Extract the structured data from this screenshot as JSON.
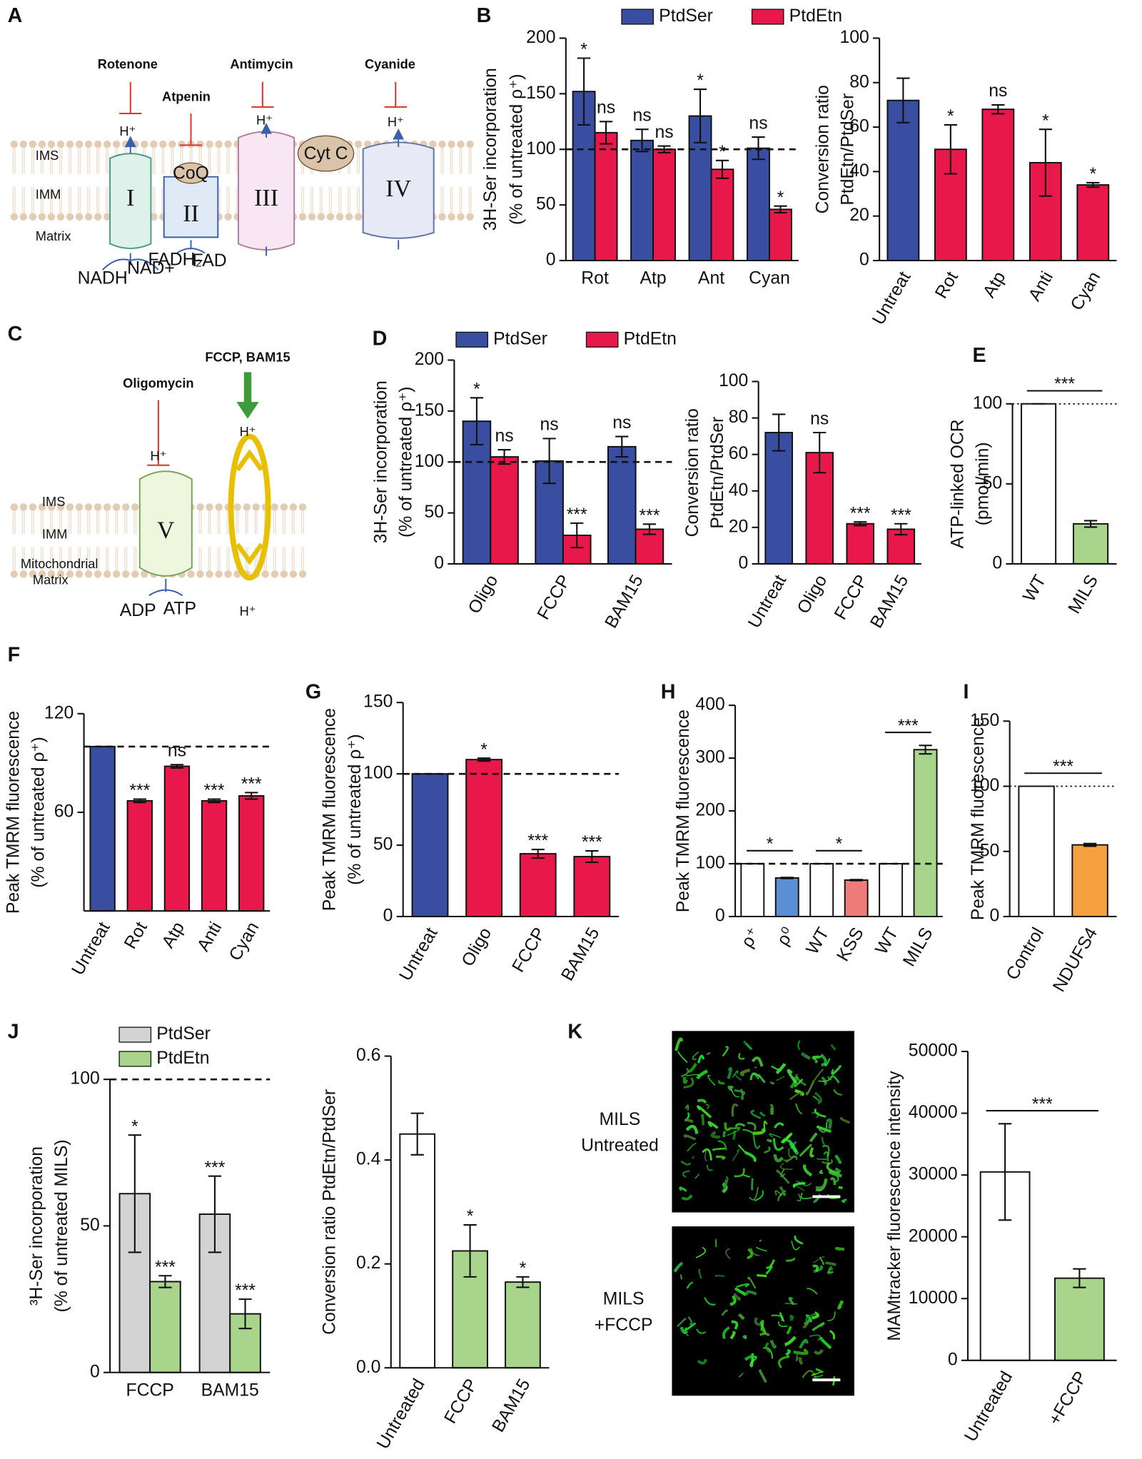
{
  "diagram_a": {
    "panel": "A",
    "inhibitors": [
      "Rotenone",
      "Atpenin",
      "Antimycin",
      "Cyanide"
    ],
    "protons": [
      "H⁺",
      "H⁺",
      "H⁺"
    ],
    "regions": [
      "IMS",
      "IMM",
      "Matrix"
    ],
    "complexes": [
      "I",
      "II",
      "III",
      "IV"
    ],
    "carriers": [
      "CoQ",
      "Cyt C"
    ],
    "substrates": [
      "NADH",
      "NAD+",
      "FADH₂",
      "FAD"
    ]
  },
  "diagram_c": {
    "panel": "C",
    "inhibitors": [
      "Oligomycin",
      "FCCP, BAM15"
    ],
    "protons": [
      "H⁺",
      "H⁺",
      "H⁺"
    ],
    "regions": [
      "IMS",
      "IMM",
      "Mitochondrial",
      "Matrix"
    ],
    "complex": "V",
    "substrates": [
      "ADP",
      "ATP"
    ]
  },
  "images": {
    "panel": "K",
    "labels": [
      [
        "MILS",
        "Untreated"
      ],
      [
        "MILS",
        "+FCCP"
      ]
    ]
  },
  "chart_data": [
    {
      "type": "bar",
      "panel": "B",
      "ylabel": [
        "3H-Ser incorporation",
        "(% of untreated ρ⁺)"
      ],
      "categories": [
        "Rot",
        "Atp",
        "Ant",
        "Cyan"
      ],
      "ylim": [
        0,
        200
      ],
      "yticks": [
        0,
        50,
        100,
        150,
        200
      ],
      "ref_line": 100,
      "ref_style": "dashed",
      "series": [
        {
          "name": "PtdSer",
          "color": "#3a4ea1",
          "values": [
            152,
            108,
            130,
            101
          ],
          "errors": [
            30,
            10,
            24,
            10
          ],
          "annotations": [
            "*",
            "ns",
            "*",
            "ns"
          ]
        },
        {
          "name": "PtdEtn",
          "color": "#e8194a",
          "values": [
            115,
            100,
            82,
            46
          ],
          "errors": [
            10,
            3,
            8,
            3
          ],
          "annotations": [
            "ns",
            "ns",
            "*",
            "*"
          ]
        }
      ]
    },
    {
      "type": "bar",
      "ylabel": [
        "Conversion ratio",
        "PtdEtn/PtdSer"
      ],
      "categories": [
        "Untreat",
        "Rot",
        "Atp",
        "Anti",
        "Cyan"
      ],
      "ylim": [
        0,
        100
      ],
      "yticks": [
        0,
        20,
        40,
        60,
        80,
        100
      ],
      "values": [
        72,
        50,
        68,
        44,
        34
      ],
      "errors": [
        10,
        11,
        2,
        15,
        1
      ],
      "colors": [
        "#3a4ea1",
        "#e8194a",
        "#e8194a",
        "#e8194a",
        "#e8194a"
      ],
      "annotations": [
        null,
        "*",
        "ns",
        "*",
        "*"
      ]
    },
    {
      "type": "bar",
      "panel": "D",
      "ylabel": [
        "3H-Ser incorporation",
        "(% of untreated ρ⁺)"
      ],
      "categories": [
        "Oligo",
        "FCCP",
        "BAM15"
      ],
      "ylim": [
        0,
        200
      ],
      "yticks": [
        0,
        50,
        100,
        150,
        200
      ],
      "ref_line": 100,
      "ref_style": "dashed",
      "series": [
        {
          "name": "PtdSer",
          "color": "#3a4ea1",
          "values": [
            140,
            101,
            115
          ],
          "errors": [
            23,
            22,
            10
          ],
          "annotations": [
            "*",
            "ns",
            "ns"
          ]
        },
        {
          "name": "PtdEtn",
          "color": "#e8194a",
          "values": [
            105,
            28,
            34
          ],
          "errors": [
            7,
            12,
            5
          ],
          "annotations": [
            "ns",
            "***",
            "***"
          ]
        }
      ]
    },
    {
      "type": "bar",
      "ylabel": [
        "Conversion ratio",
        "PtdEtn/PtdSer"
      ],
      "categories": [
        "Untreat",
        "Oligo",
        "FCCP",
        "BAM15"
      ],
      "ylim": [
        0,
        100
      ],
      "yticks": [
        0,
        20,
        40,
        60,
        80,
        100
      ],
      "values": [
        72,
        61,
        22,
        19
      ],
      "errors": [
        10,
        11,
        1,
        3
      ],
      "colors": [
        "#3a4ea1",
        "#e8194a",
        "#e8194a",
        "#e8194a"
      ],
      "annotations": [
        null,
        "ns",
        "***",
        "***"
      ]
    },
    {
      "type": "bar",
      "panel": "E",
      "ylabel": [
        "ATP-linked OCR",
        "(pmol/min)"
      ],
      "categories": [
        "WT",
        "MILS"
      ],
      "ylim": [
        0,
        100
      ],
      "yticks": [
        0,
        50,
        100
      ],
      "ref_line": 100,
      "ref_style": "dotted",
      "values": [
        100,
        25
      ],
      "errors": [
        0,
        2
      ],
      "colors": [
        "#ffffff",
        "#a8d58b"
      ],
      "annotations": [
        null,
        "***"
      ]
    },
    {
      "type": "bar",
      "panel": "F",
      "ylabel": [
        "Peak TMRM fluorescence",
        "(% of untreated ρ⁺)"
      ],
      "categories": [
        "Untreat",
        "Rot",
        "Atp",
        "Anti",
        "Cyan"
      ],
      "ylim": [
        0,
        120
      ],
      "yticks": [
        60,
        120
      ],
      "ref_line": 100,
      "ref_style": "dashed",
      "values": [
        100,
        67,
        88,
        67,
        70
      ],
      "errors": [
        0,
        1,
        1,
        1,
        2
      ],
      "colors": [
        "#3a4ea1",
        "#e8194a",
        "#e8194a",
        "#e8194a",
        "#e8194a"
      ],
      "annotations": [
        null,
        "***",
        "ns",
        "***",
        "***"
      ]
    },
    {
      "type": "bar",
      "panel": "G",
      "ylabel": [
        "Peak TMRM fluorescence",
        "(% of untreated ρ⁺)"
      ],
      "categories": [
        "Untreat",
        "Oligo",
        "FCCP",
        "BAM15"
      ],
      "ylim": [
        0,
        150
      ],
      "yticks": [
        0,
        50,
        100,
        150
      ],
      "ref_line": 100,
      "ref_style": "dashed",
      "values": [
        100,
        110,
        44,
        42
      ],
      "errors": [
        0,
        1,
        3,
        4
      ],
      "colors": [
        "#3a4ea1",
        "#e8194a",
        "#e8194a",
        "#e8194a"
      ],
      "annotations": [
        null,
        "*",
        "***",
        "***"
      ]
    },
    {
      "type": "bar",
      "panel": "H",
      "ylabel": [
        "Peak TMRM fluorescence"
      ],
      "categories": [
        "ρ⁺",
        "ρ⁰",
        "WT",
        "KSS",
        "WT",
        "MILS"
      ],
      "ylim": [
        0,
        400
      ],
      "yticks": [
        0,
        100,
        200,
        300,
        400
      ],
      "ref_line": 100,
      "ref_style": "dashed",
      "values": [
        100,
        73,
        100,
        69,
        100,
        316
      ],
      "errors": [
        0,
        1,
        0,
        1,
        0,
        8
      ],
      "colors": [
        "#ffffff",
        "#5b8fd4",
        "#ffffff",
        "#f07b7b",
        "#ffffff",
        "#a8d58b"
      ],
      "annotations": [
        null,
        "*",
        null,
        "*",
        null,
        "***"
      ]
    },
    {
      "type": "bar",
      "panel": "I",
      "ylabel": [
        "Peak TMRM fluorescence"
      ],
      "categories": [
        "Control",
        "NDUFS4"
      ],
      "ylim": [
        0,
        150
      ],
      "yticks": [
        0,
        50,
        100,
        150
      ],
      "ref_line": 100,
      "ref_style": "dotted",
      "values": [
        100,
        55
      ],
      "errors": [
        0,
        1
      ],
      "colors": [
        "#ffffff",
        "#f5a142"
      ],
      "annotations": [
        null,
        "***"
      ]
    },
    {
      "type": "bar",
      "panel": "J",
      "ylabel": [
        "³H-Ser incorporation",
        "(% of untreated MILS)"
      ],
      "categories": [
        "FCCP",
        "BAM15"
      ],
      "ylim": [
        0,
        100
      ],
      "yticks": [
        0,
        50,
        100
      ],
      "ref_line": 100,
      "ref_style": "dashed",
      "series": [
        {
          "name": "PtdSer",
          "color": "#d3d3d3",
          "values": [
            61,
            54
          ],
          "errors": [
            20,
            13
          ],
          "annotations": [
            "*",
            "***"
          ]
        },
        {
          "name": "PtdEtn",
          "color": "#a8d58b",
          "values": [
            31,
            20
          ],
          "errors": [
            2,
            5
          ],
          "annotations": [
            "***",
            "***"
          ]
        }
      ]
    },
    {
      "type": "bar",
      "ylabel": [
        "Conversion ratio PtdEtn/PtdSer"
      ],
      "categories": [
        "Untreated",
        "FCCP",
        "BAM15"
      ],
      "ylim": [
        0,
        0.6
      ],
      "yticks": [
        {
          "value": 0,
          "label": "0.0"
        },
        0.2,
        0.4,
        0.6
      ],
      "values": [
        0.45,
        0.225,
        0.165
      ],
      "errors": [
        0.04,
        0.05,
        0.01
      ],
      "colors": [
        "#ffffff",
        "#a8d58b",
        "#a8d58b"
      ],
      "annotations": [
        null,
        "*",
        "*"
      ]
    },
    {
      "type": "bar",
      "ylabel": [
        "MAMtracker fluorescence intensity"
      ],
      "categories": [
        "Untreated",
        "+FCCP"
      ],
      "ylim": [
        0,
        50000
      ],
      "yticks": [
        0,
        10000,
        20000,
        30000,
        40000,
        50000
      ],
      "values": [
        30500,
        13300
      ],
      "errors": [
        7800,
        1500
      ],
      "colors": [
        "#ffffff",
        "#a8d58b"
      ],
      "annotations": [
        null,
        "***"
      ]
    }
  ]
}
